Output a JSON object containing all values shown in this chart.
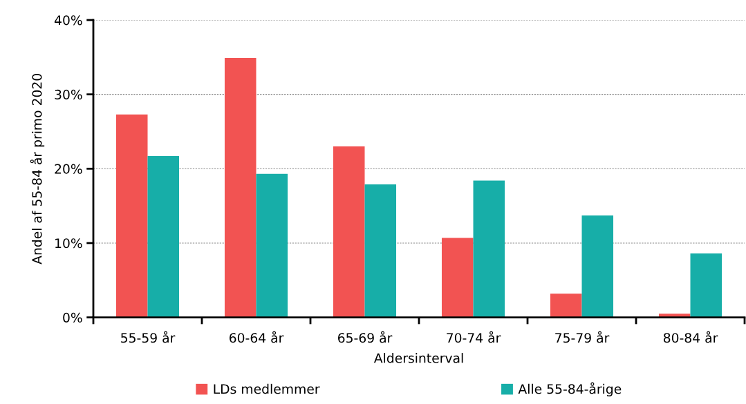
{
  "chart_data": {
    "type": "bar",
    "xlabel": "Aldersinterval",
    "ylabel": "Andel af 55-84 år primo 2020",
    "categories": [
      "55-59 år",
      "60-64 år",
      "65-69 år",
      "70-74 år",
      "75-79 år",
      "80-84 år"
    ],
    "series": [
      {
        "name": "LDs medlemmer",
        "color": "#f25352",
        "values": [
          27.3,
          34.9,
          23.0,
          10.7,
          3.2,
          0.5
        ]
      },
      {
        "name": "Alle 55-84-årige",
        "color": "#17aea8",
        "values": [
          21.7,
          19.3,
          17.9,
          18.4,
          13.7,
          8.6
        ]
      }
    ],
    "ylim": [
      0,
      40
    ],
    "yticks": [
      {
        "value": 0,
        "label": "0%"
      },
      {
        "value": 10,
        "label": "10%"
      },
      {
        "value": 20,
        "label": "20%"
      },
      {
        "value": 30,
        "label": "30%"
      },
      {
        "value": 40,
        "label": "40%"
      }
    ],
    "grid": "y",
    "legend": "bottom"
  }
}
